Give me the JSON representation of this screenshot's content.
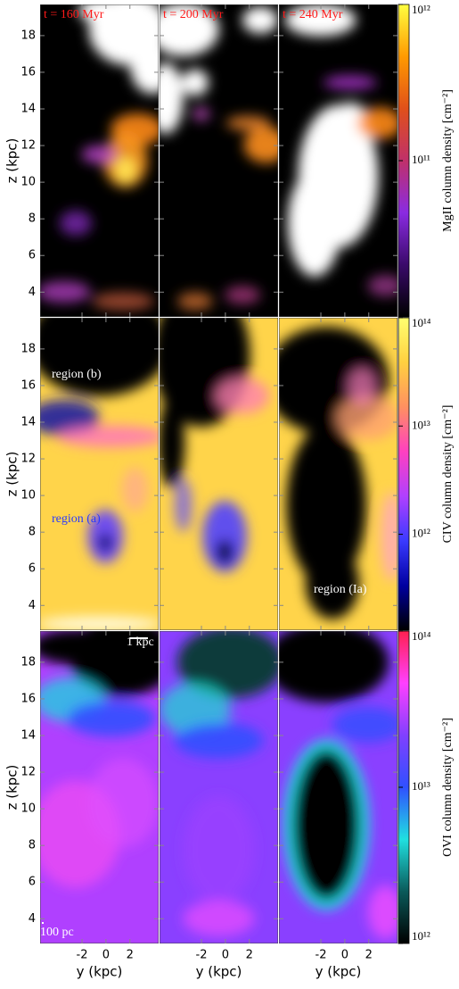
{
  "figure": {
    "columns": [
      {
        "title": "t = 160 Myr"
      },
      {
        "title": "t = 200 Myr"
      },
      {
        "title": "t = 240 Myr"
      }
    ],
    "title_color": "#ff1a1a",
    "x_label": "y  (kpc)",
    "xlim": [
      -5.5,
      4.4
    ],
    "xticks": [
      -2,
      0,
      2
    ],
    "y_label": "z  (kpc)",
    "ylim": [
      2.65,
      19.7
    ],
    "yticks": [
      4,
      6,
      8,
      10,
      12,
      14,
      16,
      18
    ],
    "rows": [
      {
        "colorbar_label": "MgII column density [cm⁻²]",
        "log_scale": true,
        "clim": [
          10000000000.0,
          1000000000000.0
        ],
        "cticks": [
          {
            "value": 100000000000.0,
            "label": "10¹¹"
          },
          {
            "value": 1000000000000.0,
            "label": "10¹²"
          }
        ],
        "colors": [
          "#000000",
          "#3a0a6a",
          "#8a2be2",
          "#c0306a",
          "#e0501a",
          "#ff9a00",
          "#ffff40"
        ]
      },
      {
        "colorbar_label": "CIV column density [cm⁻²]",
        "log_scale": true,
        "clim": [
          130000000000.0,
          100000000000000.0
        ],
        "cticks": [
          {
            "value": 1000000000000.0,
            "label": "10¹²"
          },
          {
            "value": 10000000000000.0,
            "label": "10¹³"
          },
          {
            "value": 100000000000000.0,
            "label": "10¹⁴"
          }
        ],
        "colors": [
          "#000000",
          "#0000a0",
          "#3a3aff",
          "#b040ff",
          "#ff40c0",
          "#ff9060",
          "#ffd040",
          "#ffff70"
        ]
      },
      {
        "colorbar_label": "OVI column density [cm⁻²]",
        "log_scale": true,
        "clim": [
          1000000000000.0,
          100000000000000.0
        ],
        "cticks": [
          {
            "value": 1000000000000.0,
            "label": "10¹²"
          },
          {
            "value": 10000000000000.0,
            "label": "10¹³"
          },
          {
            "value": 100000000000000.0,
            "label": "10¹⁴"
          }
        ],
        "colors": [
          "#000000",
          "#0a5a5a",
          "#20e0e0",
          "#3050ff",
          "#8040ff",
          "#ff40ff",
          "#ff2050"
        ]
      }
    ],
    "annotations": [
      {
        "text": "region (b)",
        "color": "#ffffff"
      },
      {
        "text": "region (a)",
        "color": "#2a3aff"
      },
      {
        "text": "region (Ia)",
        "color": "#ffffff"
      },
      {
        "text": "1 kpc",
        "color": "#ffffff"
      },
      {
        "text": "100 pc",
        "color": "#ffffff"
      }
    ]
  }
}
